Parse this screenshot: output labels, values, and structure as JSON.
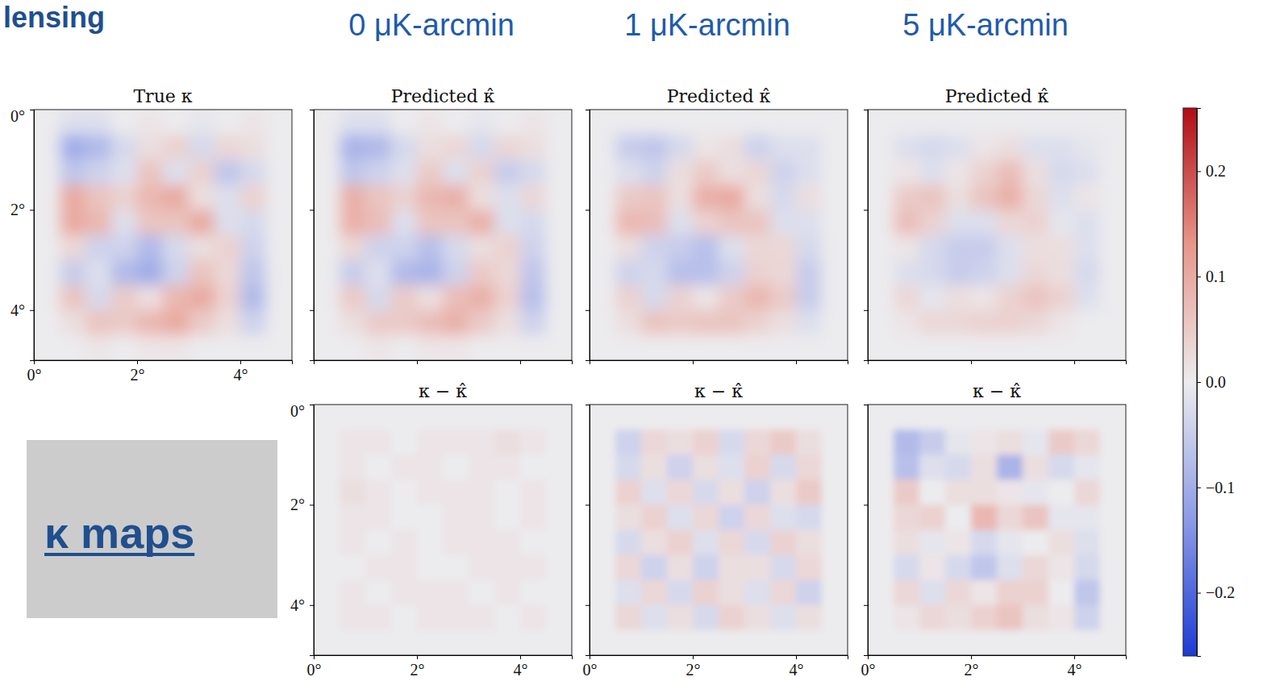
{
  "header": {
    "section": "lensing",
    "columns": [
      "0 μK-arcmin",
      "1 μK-arcmin",
      "5 μK-arcmin"
    ],
    "box_label": "κ maps"
  },
  "chart_data": {
    "type": "heatmap",
    "xlim": [
      0,
      5
    ],
    "ylim": [
      0,
      5
    ],
    "xticks": [
      {
        "value": 0,
        "label": "0°"
      },
      {
        "value": 2,
        "label": "2°"
      },
      {
        "value": 4,
        "label": "4°"
      }
    ],
    "yticks": [
      {
        "value": 0,
        "label": "0°"
      },
      {
        "value": 2,
        "label": "2°"
      },
      {
        "value": 4,
        "label": "4°"
      }
    ],
    "colorbar": {
      "range": [
        -0.26,
        0.26
      ],
      "ticks": [
        {
          "value": -0.2,
          "label": "−0.2"
        },
        {
          "value": -0.1,
          "label": "−0.1"
        },
        {
          "value": 0,
          "label": "0.0"
        },
        0.1,
        0.2
      ]
    },
    "panels": [
      {
        "title": "True κ",
        "cells": [
          [
            0,
            -0.02,
            -0.02,
            0,
            0.01,
            0,
            -0.01,
            0,
            0.01,
            0
          ],
          [
            0,
            -0.1,
            -0.08,
            -0.03,
            0.02,
            0.04,
            -0.03,
            0.03,
            0.02,
            0
          ],
          [
            0,
            -0.06,
            -0.04,
            -0.02,
            0.06,
            -0.02,
            0.04,
            -0.06,
            -0.03,
            0
          ],
          [
            0,
            0.1,
            0.06,
            0.04,
            0.08,
            0.1,
            0.02,
            -0.02,
            0.04,
            0
          ],
          [
            0,
            0.1,
            0.08,
            -0.02,
            0.06,
            0.06,
            0.1,
            -0.02,
            -0.03,
            0
          ],
          [
            0,
            0.03,
            -0.04,
            -0.04,
            -0.08,
            -0.03,
            0.02,
            0.04,
            -0.04,
            0
          ],
          [
            0,
            -0.05,
            -0.02,
            -0.08,
            -0.1,
            -0.04,
            0.06,
            0.03,
            -0.06,
            0
          ],
          [
            0,
            0.06,
            -0.03,
            0.05,
            0.02,
            0.08,
            0.1,
            0.04,
            -0.08,
            0
          ],
          [
            0,
            0.02,
            0.06,
            0.05,
            0.08,
            0.1,
            0.05,
            0.02,
            -0.04,
            0
          ],
          [
            0,
            0,
            0.01,
            0,
            0.01,
            0.01,
            0,
            0,
            0,
            0
          ]
        ]
      },
      {
        "title": "Predicted κ̂",
        "tick_labels": false,
        "cells": [
          [
            0,
            -0.02,
            -0.02,
            0,
            0.01,
            0,
            -0.01,
            0,
            0.01,
            0
          ],
          [
            0,
            -0.09,
            -0.08,
            -0.03,
            0.02,
            0.03,
            -0.03,
            0.03,
            0.02,
            0
          ],
          [
            0,
            -0.06,
            -0.04,
            -0.02,
            0.05,
            -0.02,
            0.04,
            -0.05,
            -0.03,
            0
          ],
          [
            0,
            0.09,
            0.06,
            0.04,
            0.08,
            0.09,
            0.02,
            -0.02,
            0.03,
            0
          ],
          [
            0,
            0.09,
            0.07,
            -0.02,
            0.06,
            0.06,
            0.09,
            -0.02,
            -0.03,
            0
          ],
          [
            0,
            0.03,
            -0.04,
            -0.04,
            -0.07,
            -0.03,
            0.02,
            0.04,
            -0.04,
            0
          ],
          [
            0,
            -0.05,
            -0.02,
            -0.08,
            -0.09,
            -0.04,
            0.05,
            0.03,
            -0.06,
            0
          ],
          [
            0,
            0.05,
            -0.03,
            0.05,
            0.02,
            0.07,
            0.09,
            0.04,
            -0.07,
            0
          ],
          [
            0,
            0.02,
            0.05,
            0.05,
            0.07,
            0.09,
            0.05,
            0.02,
            -0.04,
            0
          ],
          [
            0,
            0,
            0.01,
            0,
            0.01,
            0.01,
            0,
            0,
            0,
            0
          ]
        ]
      },
      {
        "title": "Predicted κ̂",
        "tick_labels": false,
        "cells": [
          [
            0,
            0,
            0,
            0,
            0,
            0,
            0,
            0,
            0,
            0
          ],
          [
            0,
            -0.05,
            -0.06,
            -0.03,
            0.01,
            0.02,
            -0.04,
            -0.02,
            -0.02,
            0
          ],
          [
            0,
            -0.02,
            -0.04,
            0.02,
            0.05,
            0.02,
            0.03,
            -0.04,
            -0.02,
            0
          ],
          [
            0,
            0.05,
            0.06,
            0.02,
            0.09,
            0.1,
            0.02,
            -0.03,
            0.02,
            0
          ],
          [
            0,
            0.08,
            0.07,
            -0.02,
            0.04,
            0.06,
            0.06,
            -0.02,
            -0.02,
            0
          ],
          [
            0,
            0.02,
            -0.04,
            -0.05,
            -0.07,
            -0.02,
            0.03,
            0.03,
            -0.03,
            0
          ],
          [
            0,
            -0.04,
            -0.03,
            -0.07,
            -0.07,
            -0.04,
            0.04,
            0.03,
            -0.05,
            0
          ],
          [
            0,
            0.04,
            -0.03,
            0.04,
            0.01,
            0.05,
            0.08,
            0.05,
            -0.05,
            0
          ],
          [
            0,
            0.02,
            0.06,
            0.05,
            0.06,
            0.06,
            0.04,
            0.02,
            -0.02,
            0
          ],
          [
            0,
            0,
            0,
            0,
            0,
            0,
            0,
            0,
            0,
            0
          ]
        ]
      },
      {
        "title": "Predicted κ̂",
        "tick_labels": false,
        "cells": [
          [
            0,
            0,
            0,
            0,
            0,
            0,
            0,
            0,
            0,
            0
          ],
          [
            0,
            -0.02,
            -0.03,
            -0.02,
            0.01,
            0.02,
            -0.02,
            -0.02,
            -0.01,
            0
          ],
          [
            0,
            0.01,
            -0.02,
            0.01,
            0.04,
            0.07,
            0.02,
            -0.03,
            -0.02,
            0
          ],
          [
            0,
            0.05,
            0.06,
            0.02,
            0.06,
            0.09,
            0.03,
            -0.02,
            0.01,
            0
          ],
          [
            0,
            0.07,
            0.04,
            -0.02,
            -0.02,
            0.03,
            0.04,
            -0.01,
            -0.02,
            0
          ],
          [
            0,
            0.01,
            -0.03,
            -0.05,
            -0.05,
            -0.02,
            0.02,
            0.02,
            -0.02,
            0
          ],
          [
            0,
            -0.02,
            -0.03,
            -0.05,
            -0.04,
            -0.02,
            0.03,
            0.02,
            -0.03,
            0
          ],
          [
            0,
            0.03,
            -0.01,
            0.02,
            0.01,
            0.04,
            0.06,
            0.04,
            -0.02,
            0
          ],
          [
            0,
            0.01,
            0.03,
            0.03,
            0.04,
            0.04,
            0.03,
            0.01,
            0,
            0
          ],
          [
            0,
            0,
            0,
            0,
            0,
            0,
            0,
            0,
            0,
            0
          ]
        ]
      },
      {
        "title": "κ − κ̂",
        "cells": [
          [
            0,
            0,
            0,
            0,
            0,
            0,
            0,
            0,
            0,
            0
          ],
          [
            0,
            0.01,
            0.01,
            0,
            0.01,
            0.01,
            0.01,
            0.02,
            0.01,
            0
          ],
          [
            0,
            0.01,
            0,
            0.01,
            0.01,
            0,
            0.01,
            0.01,
            0,
            0
          ],
          [
            0,
            0.02,
            0.01,
            0,
            0.01,
            0.01,
            0.01,
            0,
            0.01,
            0
          ],
          [
            0,
            0.01,
            0.01,
            0,
            0,
            0.01,
            0.01,
            0,
            0.01,
            0
          ],
          [
            0,
            0.01,
            0,
            0.01,
            0,
            0.01,
            0.01,
            0.01,
            0,
            0
          ],
          [
            0,
            0,
            0.01,
            0.01,
            0,
            0,
            0.01,
            0.01,
            0.01,
            0
          ],
          [
            0,
            0.01,
            0,
            0.01,
            0.01,
            0.01,
            0,
            0.01,
            0,
            0
          ],
          [
            0,
            0.01,
            0.01,
            0,
            0.01,
            0.01,
            0.01,
            0,
            0.01,
            0
          ],
          [
            0,
            0,
            0,
            0,
            0,
            0,
            0,
            0,
            0,
            0
          ]
        ]
      },
      {
        "title": "κ − κ̂",
        "tick_labels": "x",
        "cells": [
          [
            0,
            0,
            0,
            0,
            0,
            0,
            0,
            0,
            0,
            0
          ],
          [
            0,
            -0.04,
            0.03,
            0.02,
            0.04,
            -0.03,
            0.03,
            0.05,
            0.02,
            0
          ],
          [
            0,
            -0.03,
            0.02,
            -0.04,
            0.02,
            -0.02,
            0.04,
            -0.03,
            0.03,
            0
          ],
          [
            0,
            0.04,
            -0.02,
            0.03,
            -0.03,
            0.02,
            -0.04,
            0.02,
            0.05,
            0
          ],
          [
            0,
            0.02,
            0.04,
            -0.02,
            0.03,
            -0.04,
            0.03,
            -0.02,
            -0.03,
            0
          ],
          [
            0,
            -0.03,
            0.02,
            0.04,
            -0.02,
            0.03,
            -0.03,
            0.04,
            0.02,
            0
          ],
          [
            0,
            0.03,
            -0.04,
            0.02,
            -0.04,
            0.02,
            0.02,
            -0.03,
            0.03,
            0
          ],
          [
            0,
            -0.02,
            0.03,
            -0.03,
            0.04,
            0.02,
            -0.02,
            0.03,
            -0.04,
            0
          ],
          [
            0,
            0.03,
            -0.02,
            0.02,
            -0.03,
            0.04,
            0.02,
            -0.02,
            0.02,
            0
          ],
          [
            0,
            0,
            0,
            0,
            0,
            0,
            0,
            0,
            0,
            0
          ]
        ]
      },
      {
        "title": "κ − κ̂",
        "tick_labels": "x",
        "cells": [
          [
            0,
            0,
            0,
            0,
            0,
            0,
            0,
            0,
            0,
            0
          ],
          [
            0,
            -0.08,
            -0.05,
            -0.01,
            0.01,
            0.02,
            -0.01,
            0.05,
            0.03,
            0
          ],
          [
            0,
            -0.07,
            -0.02,
            -0.03,
            0.02,
            -0.09,
            0.02,
            -0.03,
            -0.01,
            0
          ],
          [
            0,
            0.05,
            0,
            0.02,
            0.02,
            0.01,
            -0.01,
            0,
            0.03,
            0
          ],
          [
            0,
            0.03,
            0.04,
            0,
            0.08,
            0.03,
            0.06,
            -0.01,
            -0.01,
            0
          ],
          [
            0,
            0.02,
            -0.01,
            0.01,
            -0.03,
            -0.01,
            0,
            0.02,
            -0.02,
            0
          ],
          [
            0,
            -0.03,
            0.01,
            -0.03,
            -0.06,
            -0.02,
            0.03,
            0.01,
            -0.03,
            0
          ],
          [
            0,
            0.03,
            -0.02,
            0.03,
            0.01,
            0.04,
            0.04,
            0,
            -0.06,
            0
          ],
          [
            0,
            0.01,
            0.03,
            0.02,
            0.04,
            0.06,
            0.02,
            0.01,
            -0.04,
            0
          ],
          [
            0,
            0,
            0,
            0,
            0,
            0,
            0,
            0,
            0,
            0
          ]
        ]
      }
    ]
  }
}
